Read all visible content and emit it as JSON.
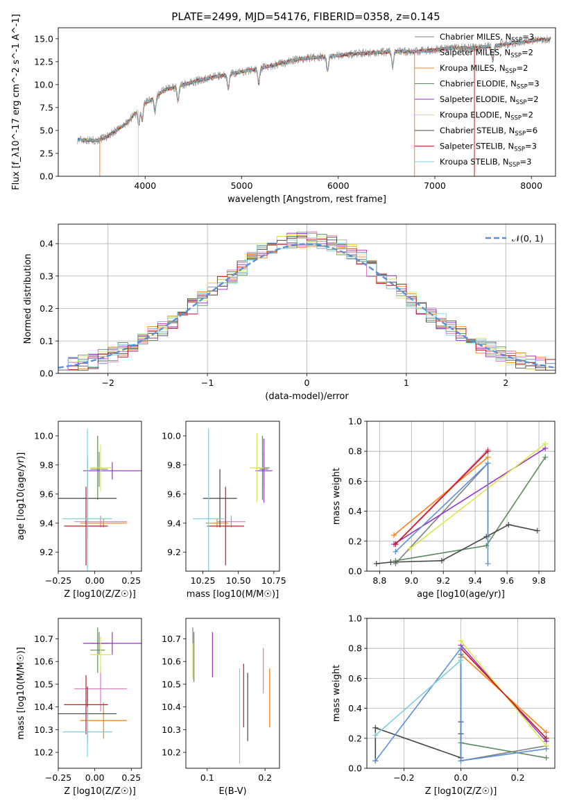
{
  "figure": {
    "title": "PLATE=2499, MJD=54176, FIBERID=0358, z=0.145"
  },
  "series_styles": [
    {
      "name": "Chabrier MILES",
      "nssp": "3",
      "color": "#808080"
    },
    {
      "name": "Salpeter MILES",
      "nssp": "2",
      "color": "#e377c2"
    },
    {
      "name": "Kroupa MILES",
      "nssp": "2",
      "color": "#ff7f0e"
    },
    {
      "name": "Chabrier ELODIE",
      "nssp": "3",
      "color": "#5a8a5a"
    },
    {
      "name": "Salpeter ELODIE",
      "nssp": "2",
      "color": "#9b30c6"
    },
    {
      "name": "Kroupa ELODIE",
      "nssp": "2",
      "color": "#d8e84a"
    },
    {
      "name": "Chabrier STELIB",
      "nssp": "6",
      "color": "#444444"
    },
    {
      "name": "Salpeter STELIB",
      "nssp": "3",
      "color": "#c41a1a"
    },
    {
      "name": "Kroupa STELIB",
      "nssp": "3",
      "color": "#7ecfd9"
    }
  ],
  "chart_data": [
    {
      "id": "spectrum",
      "type": "line",
      "xlabel": "wavelength [Angstrom, rest frame]",
      "ylabel": "Flux [f_λ10^-17 erg cm^-2 s^-1 A^-1]",
      "xlim": [
        3100,
        8250
      ],
      "ylim": [
        0,
        16.2
      ],
      "xticks": [
        4000,
        5000,
        6000,
        7000,
        8000
      ],
      "yticks": [
        0.0,
        2.5,
        5.0,
        7.5,
        10.0,
        12.5,
        15.0
      ],
      "envelope": {
        "x": [
          3300,
          3500,
          3600,
          3800,
          3900,
          4000,
          4100,
          4200,
          4400,
          4600,
          4800,
          5000,
          5200,
          5400,
          5600,
          5800,
          6000,
          6200,
          6400,
          6600,
          6800,
          7000,
          7200,
          7400,
          7600,
          7800,
          8000,
          8200
        ],
        "y": [
          4.0,
          3.9,
          4.3,
          5.7,
          6.9,
          8.0,
          8.6,
          9.4,
          10.0,
          10.6,
          11.0,
          11.4,
          11.8,
          12.3,
          12.8,
          13.0,
          13.2,
          13.4,
          13.5,
          13.6,
          13.6,
          13.8,
          14.0,
          14.0,
          14.2,
          14.5,
          14.8,
          15.0
        ]
      },
      "legend": {
        "position": "upper right",
        "entries": [
          "Chabrier MILES",
          "Salpeter MILES",
          "Kroupa MILES",
          "Chabrier ELODIE",
          "Salpeter ELODIE",
          "Kroupa ELODIE",
          "Chabrier STELIB",
          "Salpeter STELIB",
          "Kroupa STELIB"
        ]
      }
    },
    {
      "id": "residuals",
      "type": "histogram",
      "xlabel": "(data-model)/error",
      "ylabel": "Normed distribution",
      "xlim": [
        -2.5,
        2.5
      ],
      "ylim": [
        0,
        0.46
      ],
      "xticks": [
        -2,
        -1,
        0,
        1,
        2
      ],
      "yticks": [
        0.0,
        0.1,
        0.2,
        0.3,
        0.4
      ],
      "grid": true,
      "bin_width": 0.1,
      "bins_start": -2.5,
      "gaussian_label": "𝒩(0, 1)",
      "gaussian_color": "#5b8fd9",
      "legend": {
        "position": "upper right"
      }
    },
    {
      "id": "age-vs-Z",
      "type": "errorbar",
      "xlabel": "Z [log10(Z/Z☉)]",
      "ylabel": "age  [log10(age/yr)]",
      "xlim": [
        -0.25,
        0.32
      ],
      "ylim": [
        9.07,
        10.1
      ],
      "xticks": [
        -0.25,
        0.0,
        0.25
      ],
      "yticks": [
        9.2,
        9.4,
        9.6,
        9.8,
        10.0
      ],
      "points": [
        {
          "series": "Chabrier MILES",
          "x": 0.03,
          "xerr": 0.06,
          "y": 9.77,
          "yerr": 0.12
        },
        {
          "series": "Salpeter MILES",
          "x": 0.04,
          "xerr": 0.18,
          "y": 9.41,
          "yerr": 0.04
        },
        {
          "series": "Kroupa MILES",
          "x": 0.06,
          "xerr": 0.16,
          "y": 9.4,
          "yerr": 0.03
        },
        {
          "series": "Chabrier ELODIE",
          "x": 0.02,
          "xerr": 0.05,
          "y": 9.78,
          "yerr": 0.22
        },
        {
          "series": "Salpeter ELODIE",
          "x": 0.12,
          "xerr": 0.2,
          "y": 9.76,
          "yerr": 0.06
        },
        {
          "series": "Kroupa ELODIE",
          "x": 0.04,
          "xerr": 0.07,
          "y": 9.78,
          "yerr": 0.16
        },
        {
          "series": "Chabrier STELIB",
          "x": -0.05,
          "xerr": 0.2,
          "y": 9.57,
          "yerr": 0.27
        },
        {
          "series": "Salpeter STELIB",
          "x": -0.06,
          "xerr": 0.15,
          "y": 9.38,
          "yerr": 0.27
        },
        {
          "series": "Kroupa STELIB",
          "x": -0.05,
          "xerr": 0.17,
          "y": 9.43,
          "yerr": 0.62
        }
      ]
    },
    {
      "id": "age-vs-mass",
      "type": "errorbar",
      "xlabel": "mass [log10(M/M☉)]",
      "ylabel": "",
      "xlim": [
        10.13,
        10.79
      ],
      "ylim": [
        9.07,
        10.1
      ],
      "xticks": [
        10.25,
        10.5,
        10.75
      ],
      "yticks": [
        9.2,
        9.4,
        9.6,
        9.8,
        10.0
      ],
      "points": [
        {
          "series": "Chabrier MILES",
          "x": 10.68,
          "xerr": 0.03,
          "y": 9.77,
          "yerr": 0.12
        },
        {
          "series": "Salpeter MILES",
          "x": 10.45,
          "xerr": 0.1,
          "y": 9.41,
          "yerr": 0.04
        },
        {
          "series": "Kroupa MILES",
          "x": 10.35,
          "xerr": 0.08,
          "y": 9.4,
          "yerr": 0.03
        },
        {
          "series": "Chabrier ELODIE",
          "x": 10.67,
          "xerr": 0.05,
          "y": 9.78,
          "yerr": 0.22
        },
        {
          "series": "Salpeter ELODIE",
          "x": 10.68,
          "xerr": 0.06,
          "y": 9.76,
          "yerr": 0.22
        },
        {
          "series": "Kroupa ELODIE",
          "x": 10.63,
          "xerr": 0.05,
          "y": 9.78,
          "yerr": 0.24
        },
        {
          "series": "Chabrier STELIB",
          "x": 10.37,
          "xerr": 0.12,
          "y": 9.57,
          "yerr": 0.2
        },
        {
          "series": "Salpeter STELIB",
          "x": 10.41,
          "xerr": 0.13,
          "y": 9.38,
          "yerr": 0.27
        },
        {
          "series": "Kroupa STELIB",
          "x": 10.29,
          "xerr": 0.11,
          "y": 9.43,
          "yerr": 0.62
        }
      ]
    },
    {
      "id": "weight-vs-age",
      "type": "line",
      "xlabel": "age  [log10(age/yr)]",
      "ylabel": "mass weight",
      "xlim": [
        8.72,
        9.9
      ],
      "ylim": [
        0,
        1
      ],
      "xticks": [
        8.8,
        9.0,
        9.2,
        9.4,
        9.6,
        9.8
      ],
      "yticks": [
        0.0,
        0.2,
        0.4,
        0.6,
        0.8,
        1.0
      ],
      "grid": true,
      "series": [
        {
          "name": "Chabrier MILES",
          "x": [
            8.9,
            9.48,
            9.48
          ],
          "y": [
            0.05,
            0.72,
            0.23
          ]
        },
        {
          "name": "Salpeter MILES",
          "x": [
            8.9,
            9.48
          ],
          "y": [
            0.18,
            0.81
          ]
        },
        {
          "name": "Kroupa MILES",
          "x": [
            8.89,
            9.48
          ],
          "y": [
            0.24,
            0.76
          ]
        },
        {
          "name": "Chabrier ELODIE",
          "x": [
            8.9,
            9.47,
            9.84
          ],
          "y": [
            0.07,
            0.17,
            0.76
          ]
        },
        {
          "name": "Salpeter ELODIE",
          "x": [
            8.89,
            9.84
          ],
          "y": [
            0.18,
            0.82
          ]
        },
        {
          "name": "Kroupa ELODIE",
          "x": [
            8.99,
            9.84
          ],
          "y": [
            0.15,
            0.85
          ]
        },
        {
          "name": "Chabrier STELIB",
          "x": [
            8.78,
            8.87,
            9.19,
            9.47,
            9.61,
            9.79
          ],
          "y": [
            0.05,
            0.06,
            0.07,
            0.23,
            0.31,
            0.27
          ]
        },
        {
          "name": "Salpeter STELIB",
          "x": [
            8.9,
            9.48
          ],
          "y": [
            0.18,
            0.8
          ]
        },
        {
          "name": "Kroupa STELIB",
          "x": [
            8.9,
            9.48,
            9.48
          ],
          "y": [
            0.13,
            0.72,
            0.05
          ],
          "color": "#5b8fd9"
        }
      ]
    },
    {
      "id": "mass-vs-Z",
      "type": "errorbar",
      "xlabel": "Z [log10(Z/Z☉)]",
      "ylabel": "mass [log10(M/M☉)]",
      "xlim": [
        -0.25,
        0.32
      ],
      "ylim": [
        10.13,
        10.79
      ],
      "xticks": [
        -0.25,
        0.0,
        0.25
      ],
      "yticks": [
        10.2,
        10.3,
        10.4,
        10.5,
        10.6,
        10.7
      ],
      "points": [
        {
          "series": "Chabrier MILES",
          "x": 0.03,
          "xerr": 0.06,
          "y": 10.68,
          "yerr": 0.05
        },
        {
          "series": "Salpeter MILES",
          "x": 0.04,
          "xerr": 0.18,
          "y": 10.48,
          "yerr": 0.1
        },
        {
          "series": "Kroupa MILES",
          "x": 0.06,
          "xerr": 0.16,
          "y": 10.34,
          "yerr": 0.08
        },
        {
          "series": "Chabrier ELODIE",
          "x": 0.02,
          "xerr": 0.05,
          "y": 10.65,
          "yerr": 0.1
        },
        {
          "series": "Salpeter ELODIE",
          "x": 0.12,
          "xerr": 0.2,
          "y": 10.68,
          "yerr": 0.05
        },
        {
          "series": "Kroupa ELODIE",
          "x": 0.04,
          "xerr": 0.07,
          "y": 10.63,
          "yerr": 0.08
        },
        {
          "series": "Chabrier STELIB",
          "x": -0.05,
          "xerr": 0.2,
          "y": 10.37,
          "yerr": 0.12
        },
        {
          "series": "Salpeter STELIB",
          "x": -0.06,
          "xerr": 0.15,
          "y": 10.41,
          "yerr": 0.13
        },
        {
          "series": "Kroupa STELIB",
          "x": -0.05,
          "xerr": 0.17,
          "y": 10.29,
          "yerr": 0.11
        }
      ]
    },
    {
      "id": "mass-vs-ebv",
      "type": "errorbar",
      "xlabel": "E(B-V)",
      "ylabel": "",
      "xlim": [
        0.063,
        0.225
      ],
      "ylim": [
        10.13,
        10.79
      ],
      "xticks": [
        0.1,
        0.2
      ],
      "yticks": [
        10.2,
        10.3,
        10.4,
        10.5,
        10.6,
        10.7
      ],
      "points": [
        {
          "series": "Chabrier MILES",
          "x": 0.075,
          "xerr": 0,
          "y": 10.64,
          "yerr": 0.11
        },
        {
          "series": "Salpeter MILES",
          "x": 0.197,
          "xerr": 0,
          "y": 10.56,
          "yerr": 0.1
        },
        {
          "series": "Kroupa MILES",
          "x": 0.208,
          "xerr": 0,
          "y": 10.44,
          "yerr": 0.13
        },
        {
          "series": "Chabrier ELODIE",
          "x": 0.077,
          "xerr": 0,
          "y": 10.62,
          "yerr": 0.11
        },
        {
          "series": "Salpeter ELODIE",
          "x": 0.109,
          "xerr": 0,
          "y": 10.63,
          "yerr": 0.1
        },
        {
          "series": "Kroupa ELODIE",
          "x": 0.075,
          "xerr": 0,
          "y": 10.6,
          "yerr": 0.08
        },
        {
          "series": "Chabrier STELIB",
          "x": 0.17,
          "xerr": 0,
          "y": 10.4,
          "yerr": 0.15
        },
        {
          "series": "Salpeter STELIB",
          "x": 0.163,
          "xerr": 0,
          "y": 10.45,
          "yerr": 0.14
        },
        {
          "series": "Kroupa STELIB",
          "x": 0.156,
          "xerr": 0,
          "y": 10.36,
          "yerr": 0.21
        }
      ]
    },
    {
      "id": "weight-vs-Z",
      "type": "line",
      "xlabel": "Z [log10(Z/Z☉)]",
      "ylabel": "mass weight",
      "xlim": [
        -0.33,
        0.33
      ],
      "ylim": [
        0,
        1
      ],
      "xticks": [
        -0.2,
        0.0,
        0.2
      ],
      "yticks": [
        0.0,
        0.2,
        0.4,
        0.6,
        0.8,
        1.0
      ],
      "grid": true,
      "series": [
        {
          "name": "Chabrier MILES",
          "x": [
            0.0,
            0.0,
            0.3
          ],
          "y": [
            0.74,
            0.05,
            0.15
          ]
        },
        {
          "name": "Salpeter MILES",
          "x": [
            0.0,
            0.3
          ],
          "y": [
            0.8,
            0.2
          ]
        },
        {
          "name": "Kroupa MILES",
          "x": [
            0.0,
            0.3
          ],
          "y": [
            0.76,
            0.24
          ]
        },
        {
          "name": "Chabrier ELODIE",
          "x": [
            0.0,
            0.0,
            0.3
          ],
          "y": [
            0.76,
            0.17,
            0.07
          ]
        },
        {
          "name": "Salpeter ELODIE",
          "x": [
            0.0,
            0.3
          ],
          "y": [
            0.82,
            0.18
          ]
        },
        {
          "name": "Kroupa ELODIE",
          "x": [
            0.0,
            0.3
          ],
          "y": [
            0.85,
            0.15
          ]
        },
        {
          "name": "Chabrier STELIB",
          "x": [
            -0.3,
            -0.3,
            0.0,
            0.0,
            0.0
          ],
          "y": [
            0.05,
            0.27,
            0.07,
            0.23,
            0.31
          ]
        },
        {
          "name": "Salpeter STELIB",
          "x": [
            0.0,
            0.3
          ],
          "y": [
            0.8,
            0.2
          ]
        },
        {
          "name": "Kroupa STELIB",
          "x": [
            -0.3,
            0.0,
            0.0,
            0.3
          ],
          "y": [
            0.05,
            0.8,
            0.05,
            0.13
          ],
          "color": "#5b8fd9"
        },
        {
          "name": "Kroupa STELIB",
          "x": [
            -0.3,
            0.0
          ],
          "y": [
            0.22,
            0.72
          ]
        }
      ]
    }
  ]
}
